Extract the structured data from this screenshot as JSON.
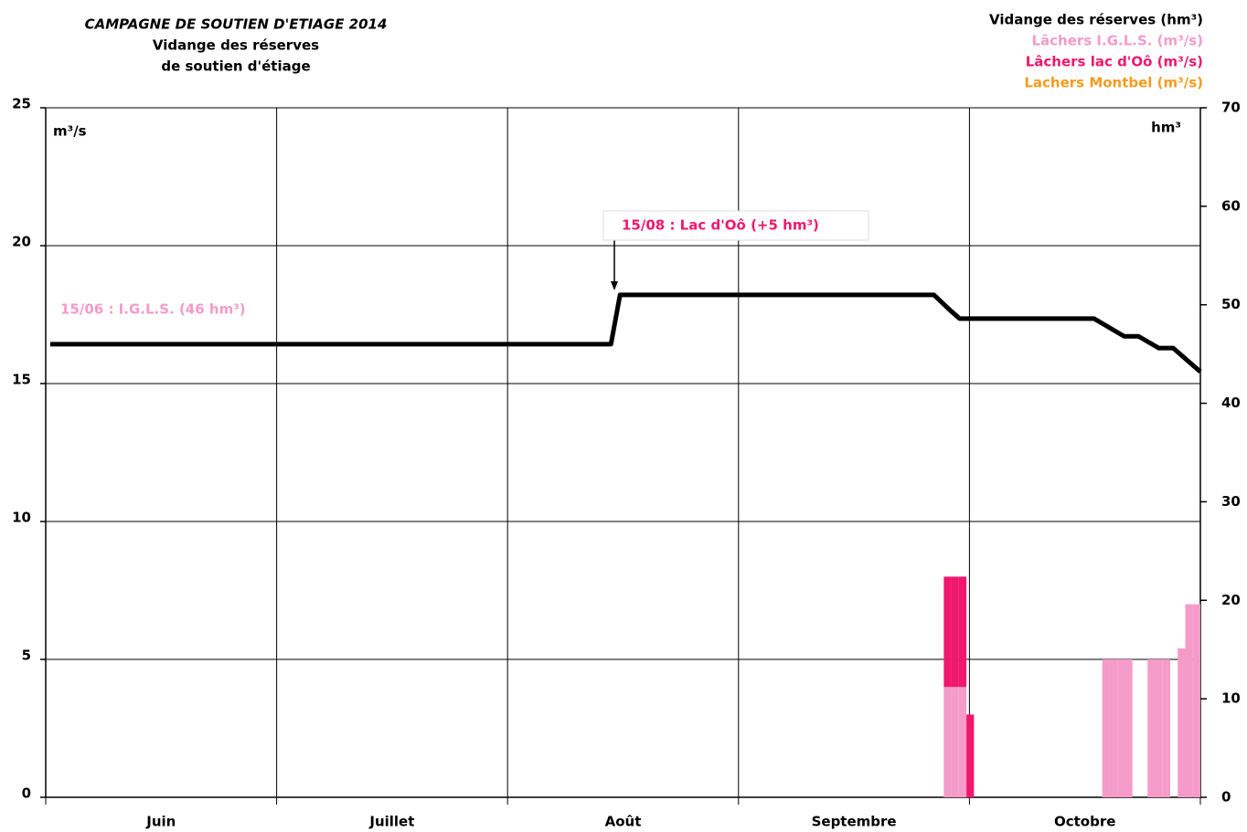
{
  "chart_data": {
    "type": "bar",
    "title": "CAMPAGNE DE SOUTIEN D'ETIAGE 2014",
    "subtitle": [
      "Vidange des réserves",
      "de soutien d'étiage"
    ],
    "y_axis_label": "m³/s",
    "y2_axis_label": "hm³",
    "categories": [
      "Juin",
      "Juillet",
      "Août",
      "Septembre",
      "Octobre"
    ],
    "xlim": [
      0,
      153
    ],
    "ylim": [
      0,
      25
    ],
    "yticks": [
      0,
      5,
      10,
      15,
      20,
      25
    ],
    "y2lim": [
      0,
      70
    ],
    "y2ticks": [
      0,
      10,
      20,
      30,
      40,
      50,
      60,
      70
    ],
    "grid": true,
    "legend": "top-right",
    "series": [
      {
        "name": "Vidange des réserves (hm³)",
        "type": "line",
        "axis": "y2",
        "color": "#000000",
        "x": [
          0.6,
          74.9,
          76.1,
          117.7,
          119.9,
          121.1,
          138.9,
          142.9,
          144.8,
          147.5,
          149.4,
          153
        ],
        "values": [
          46,
          46,
          51,
          51,
          49.4,
          48.6,
          48.6,
          46.8,
          46.8,
          45.6,
          45.6,
          43.2
        ]
      },
      {
        "name": "Lâchers I.G.L.S. (m³/s)",
        "type": "bar",
        "color": "#f59bc9",
        "x": [
          119,
          120,
          121,
          140,
          141,
          142,
          143,
          146,
          147,
          148,
          150,
          151,
          152
        ],
        "values": [
          4,
          4,
          4,
          5,
          5,
          5,
          5,
          5,
          5,
          5,
          5.4,
          7,
          7
        ]
      },
      {
        "name": "Lâchers lac d'Oô (m³/s)",
        "type": "bar",
        "color": "#f0176d",
        "x": [
          119,
          120,
          121,
          122
        ],
        "values": [
          4,
          4,
          4,
          3
        ]
      },
      {
        "name": "Lachers Montbel (m³/s)",
        "type": "bar",
        "color": "#f39c1f",
        "x": [],
        "values": []
      }
    ],
    "annotations": [
      {
        "text": "15/06 : I.G.L.S. (46 hm³)",
        "color": "#f59bc9"
      },
      {
        "text": "15/08 : Lac d'Oô (+5 hm³)",
        "color": "#f0176d"
      }
    ]
  }
}
